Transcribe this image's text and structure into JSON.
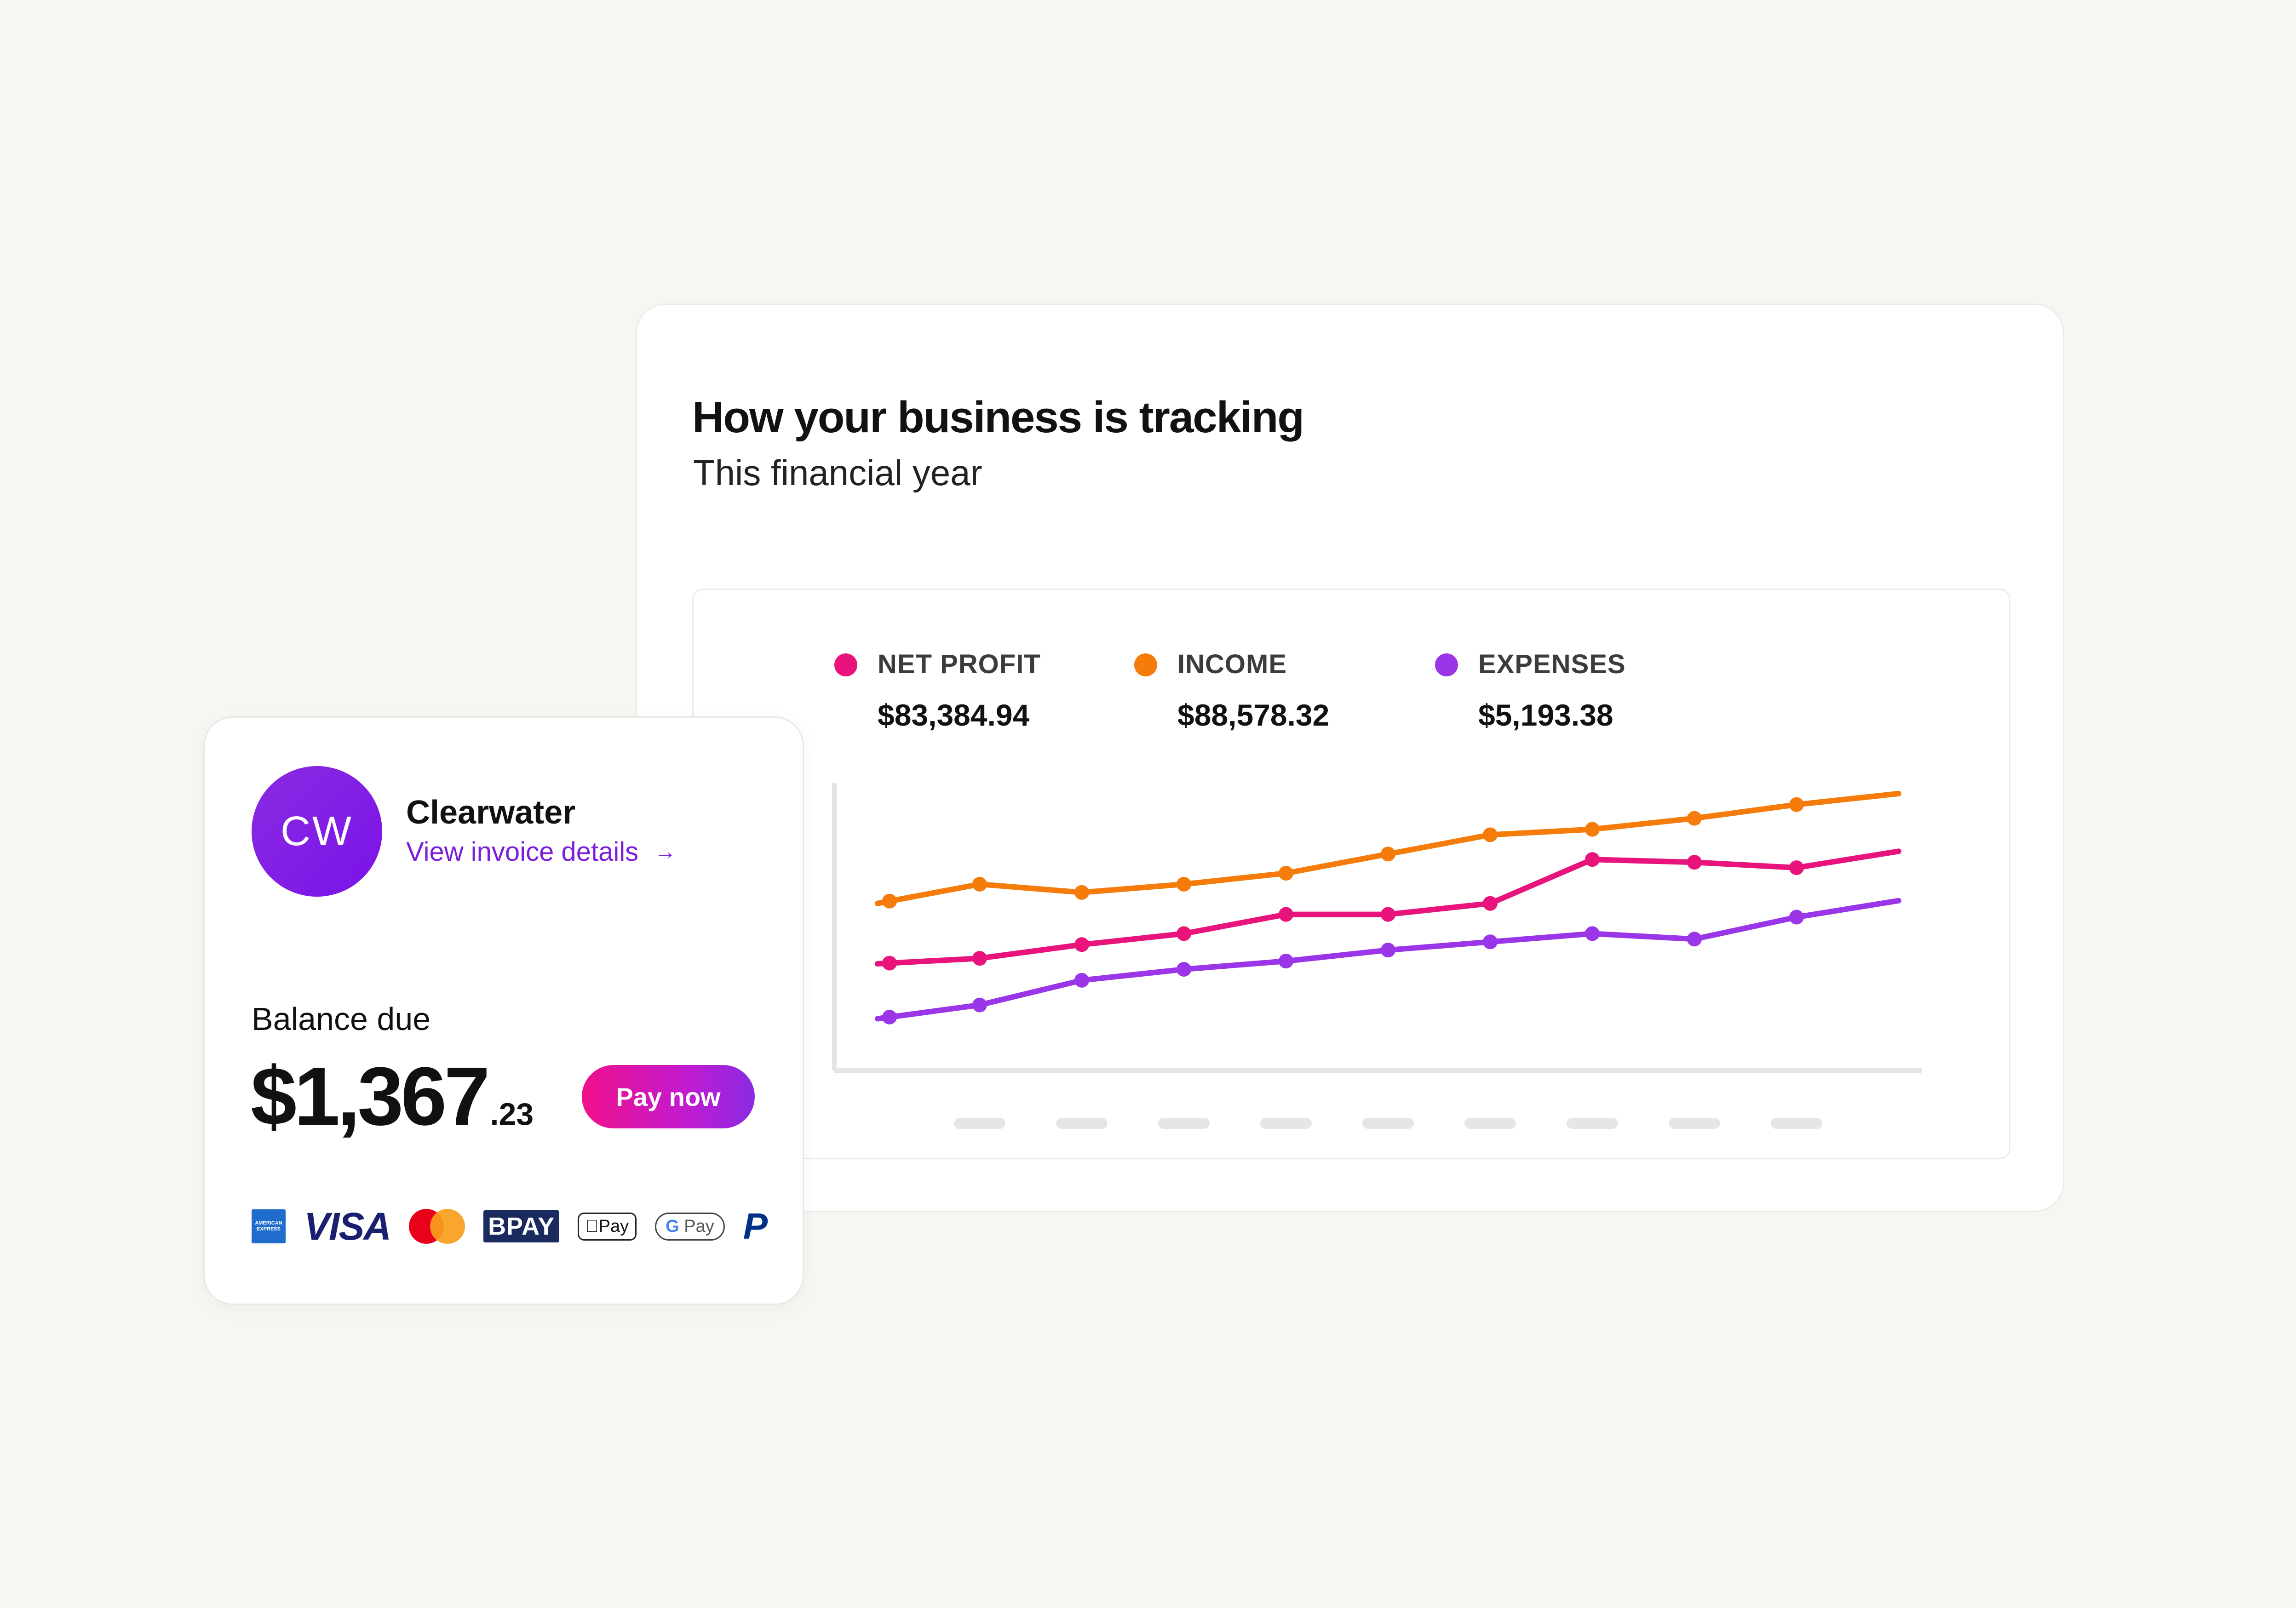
{
  "chart_card": {
    "title": "How your business is tracking",
    "subtitle": "This financial year"
  },
  "legend": [
    {
      "label": "NET PROFIT",
      "value": "$83,384.94",
      "color": "#e8147c"
    },
    {
      "label": "INCOME",
      "value": "$88,578.32",
      "color": "#f57c0a"
    },
    {
      "label": "EXPENSES",
      "value": "$5,193.38",
      "color": "#9b35e8"
    }
  ],
  "chart_data": {
    "type": "line",
    "title": "How your business is tracking",
    "subtitle": "This financial year",
    "x": [
      0,
      1,
      2,
      3,
      4,
      5,
      6,
      7,
      8,
      9,
      10
    ],
    "x_tick_labels": [
      "",
      "",
      "",
      "",
      "",
      "",
      "",
      "",
      "",
      "",
      ""
    ],
    "series": [
      {
        "name": "INCOME",
        "color": "#f57c0a",
        "values": [
          57,
          64,
          61,
          64,
          68,
          75,
          82,
          84,
          88,
          93,
          97
        ]
      },
      {
        "name": "NET PROFIT",
        "color": "#e8147c",
        "values": [
          35,
          37,
          42,
          46,
          53,
          53,
          57,
          73,
          72,
          70,
          76
        ]
      },
      {
        "name": "EXPENSES",
        "color": "#9b35e8",
        "values": [
          15,
          20,
          29,
          33,
          36,
          40,
          43,
          46,
          44,
          52,
          58
        ]
      }
    ],
    "marker_indices": [
      1,
      2,
      3,
      4,
      5,
      6,
      7,
      8,
      9
    ],
    "ylim": [
      0,
      100
    ],
    "grid": false,
    "legend_position": "top-left"
  },
  "invoice": {
    "initials": "CW",
    "company": "Clearwater",
    "link_label": "View invoice details",
    "link_icon": "arrow-right-icon",
    "balance_label": "Balance due",
    "balance_main": "$1,367",
    "balance_cents": ".23",
    "pay_label": "Pay now",
    "avatar_color": "#7f17e6",
    "link_color": "#7b20d8"
  },
  "payment_methods": {
    "amex": "AMERICAN EXPRESS",
    "visa": "VISA",
    "bpay": "BPAY",
    "apple_pay": "Pay",
    "google_pay": "Pay",
    "paypal": "P"
  }
}
